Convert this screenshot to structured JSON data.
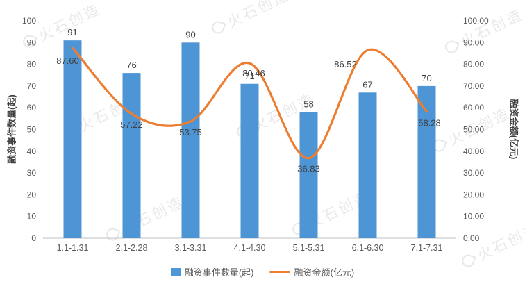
{
  "watermark": {
    "text": "火石创造"
  },
  "chart_data": {
    "type": "combo",
    "categories": [
      "1.1-1.31",
      "2.1-2.28",
      "3.1-3.31",
      "4.1-4.30",
      "5.1-5.31",
      "6.1-6.30",
      "7.1-7.31"
    ],
    "series": [
      {
        "name": "融资事件数量(起)",
        "type": "bar",
        "values": [
          91,
          76,
          90,
          71,
          58,
          67,
          70
        ],
        "color": "#4E95D5"
      },
      {
        "name": "融资金额(亿元)",
        "type": "line",
        "values": [
          87.6,
          57.22,
          53.75,
          80.46,
          36.83,
          86.52,
          58.28
        ],
        "color": "#ED7D31"
      }
    ],
    "left_axis": {
      "label": "融资事件数量(起)",
      "min": 0,
      "max": 100,
      "step": 10
    },
    "right_axis": {
      "label": "融资金额(亿元)",
      "min": 0,
      "max": 100,
      "step": 10,
      "format": "0.00"
    },
    "legend": [
      "融资事件数量(起)",
      "融资金额(亿元)"
    ],
    "grid": false,
    "legend_position": "bottom"
  }
}
